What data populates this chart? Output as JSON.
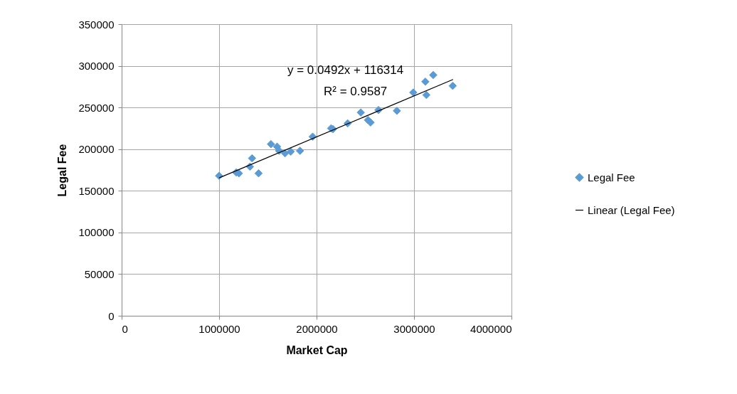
{
  "chart_data": {
    "type": "scatter",
    "xlabel": "Market Cap",
    "ylabel": "Legal Fee",
    "xlim": [
      0,
      4000000
    ],
    "xticks": [
      0,
      1000000,
      2000000,
      3000000,
      4000000
    ],
    "ylim": [
      0,
      350000
    ],
    "yticks": [
      0,
      50000,
      100000,
      150000,
      200000,
      250000,
      300000,
      350000
    ],
    "grid": true,
    "legend": "right",
    "marker": "diamond",
    "annotations": [
      "y = 0.0492x + 116314",
      "R² = 0.9587"
    ],
    "series": [
      {
        "name": "Legal Fee",
        "color": "#5b9bd5",
        "x": [
          1000000,
          1176000,
          1203000,
          1316000,
          1338000,
          1405000,
          1532000,
          1595000,
          1616000,
          1676000,
          1735000,
          1830000,
          1960000,
          2149000,
          2168000,
          2319000,
          2454000,
          2527000,
          2554000,
          2635000,
          2824000,
          2992000,
          3116000,
          3127000,
          3197000,
          3397000
        ],
        "values": [
          168000,
          172000,
          171000,
          179000,
          189000,
          171000,
          206000,
          203000,
          198000,
          195000,
          197000,
          198000,
          215000,
          225000,
          224000,
          231000,
          244000,
          235000,
          232000,
          247000,
          246000,
          268000,
          281000,
          265000,
          289000,
          276000
        ]
      },
      {
        "name": "Linear (Legal Fee)",
        "color": "#000000",
        "type": "line",
        "marker": "none",
        "x": [
          1000000,
          3400000
        ],
        "values": [
          165500,
          283600
        ]
      }
    ]
  }
}
